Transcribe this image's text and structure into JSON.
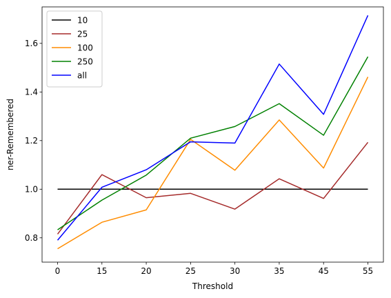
{
  "chart_data": {
    "type": "line",
    "title": "",
    "xlabel": "Threshold",
    "ylabel": "ner-Remembered",
    "categories": [
      "0",
      "15",
      "20",
      "25",
      "30",
      "35",
      "45",
      "55"
    ],
    "ylim": [
      0.7,
      1.75
    ],
    "yticks": [
      "0.8",
      "1.0",
      "1.2",
      "1.4",
      "1.6"
    ],
    "grid": false,
    "legend_position": "top-left",
    "series": [
      {
        "name": "10",
        "color": "#000000",
        "values": [
          1.0,
          1.0,
          1.0,
          1.0,
          1.0,
          1.0,
          1.0,
          1.0
        ]
      },
      {
        "name": "25",
        "color": "#a52a2a",
        "values": [
          0.815,
          1.06,
          0.965,
          0.983,
          0.918,
          1.043,
          0.962,
          1.193
        ]
      },
      {
        "name": "100",
        "color": "#ff8c00",
        "values": [
          0.755,
          0.864,
          0.915,
          1.205,
          1.078,
          1.285,
          1.087,
          1.462
        ]
      },
      {
        "name": "250",
        "color": "#008000",
        "values": [
          0.833,
          0.955,
          1.058,
          1.21,
          1.258,
          1.352,
          1.222,
          1.545
        ]
      },
      {
        "name": "all",
        "color": "#0000ff",
        "values": [
          0.79,
          1.008,
          1.08,
          1.195,
          1.19,
          1.515,
          1.308,
          1.715
        ]
      }
    ]
  }
}
